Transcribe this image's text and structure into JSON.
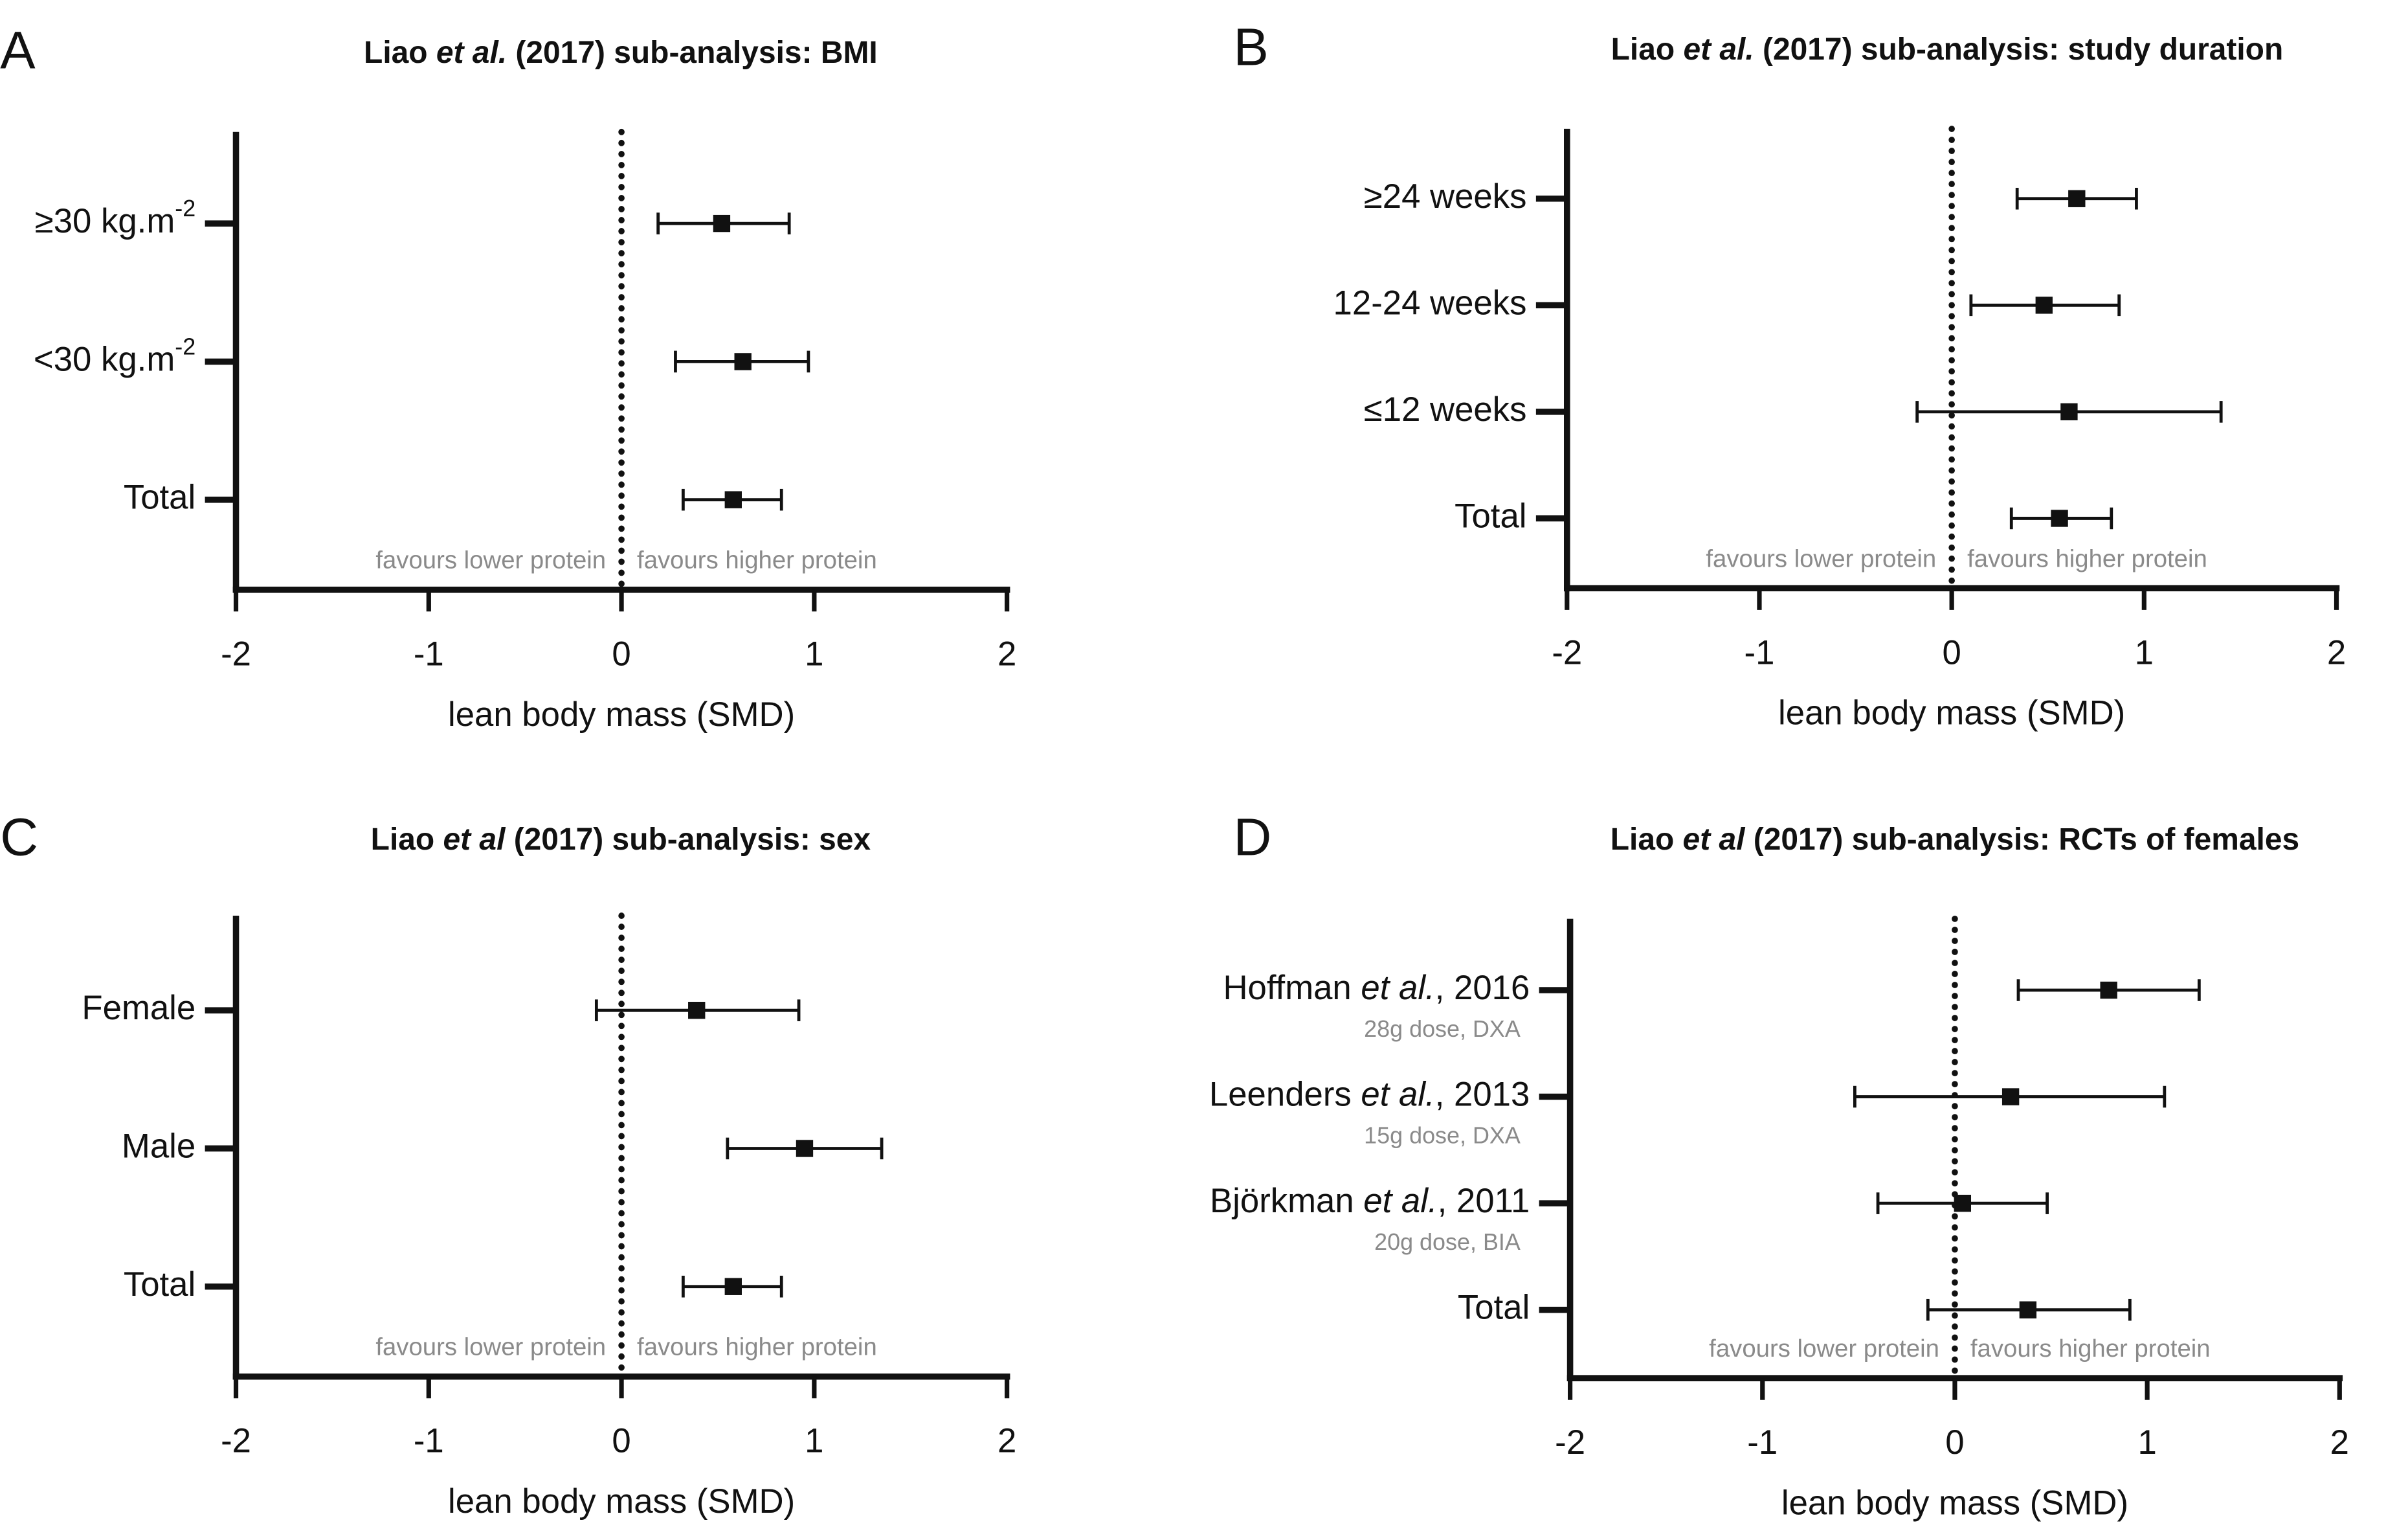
{
  "chart_data": [
    {
      "type": "forest",
      "panel": "A",
      "title": [
        "Liao ",
        "et al.",
        " (2017) sub-analysis: BMI"
      ],
      "categories": [
        [
          "≥30 kg.m",
          "-2"
        ],
        [
          "<30 kg.m",
          "-2"
        ],
        [
          "Total"
        ]
      ],
      "values": [
        0.52,
        0.63,
        0.58
      ],
      "lower": [
        0.19,
        0.28,
        0.32
      ],
      "upper": [
        0.87,
        0.97,
        0.83
      ],
      "xlim": [
        -2,
        2
      ],
      "xticks": [
        -2,
        -1,
        0,
        1,
        2
      ],
      "refline": 0,
      "xlabel": "lean body mass (SMD)",
      "annotations": [
        "favours lower protein",
        "favours higher protein"
      ]
    },
    {
      "type": "forest",
      "panel": "B",
      "title": [
        "Liao ",
        "et al.",
        " (2017) sub-analysis: study duration"
      ],
      "categories": [
        [
          "≥24 weeks"
        ],
        [
          "12-24 weeks"
        ],
        [
          "≤12 weeks"
        ],
        [
          "Total"
        ]
      ],
      "values": [
        0.65,
        0.48,
        0.61,
        0.56
      ],
      "lower": [
        0.34,
        0.1,
        -0.18,
        0.31
      ],
      "upper": [
        0.96,
        0.87,
        1.4,
        0.83
      ],
      "xlim": [
        -2,
        2
      ],
      "xticks": [
        -2,
        -1,
        0,
        1,
        2
      ],
      "refline": 0,
      "xlabel": "lean body mass (SMD)",
      "annotations": [
        "favours lower protein",
        "favours higher protein"
      ]
    },
    {
      "type": "forest",
      "panel": "C",
      "title": [
        "Liao ",
        "et al",
        " (2017) sub-analysis: sex"
      ],
      "categories": [
        [
          "Female"
        ],
        [
          "Male"
        ],
        [
          "Total"
        ]
      ],
      "values": [
        0.39,
        0.95,
        0.58
      ],
      "lower": [
        -0.13,
        0.55,
        0.32
      ],
      "upper": [
        0.92,
        1.35,
        0.83
      ],
      "xlim": [
        -2,
        2
      ],
      "xticks": [
        -2,
        -1,
        0,
        1,
        2
      ],
      "refline": 0,
      "xlabel": "lean body mass (SMD)",
      "annotations": [
        "favours lower protein",
        "favours higher protein"
      ]
    },
    {
      "type": "forest",
      "panel": "D",
      "title": [
        "Liao ",
        "et al",
        " (2017) sub-analysis: RCTs of females"
      ],
      "categories": [
        [
          "Hoffman ",
          "et al.",
          ", 2016"
        ],
        [
          "Leenders ",
          "et al.",
          ", 2013"
        ],
        [
          "Björkman ",
          "et al.",
          ", 2011"
        ],
        [
          "Total"
        ]
      ],
      "sublabels": [
        "28g dose, DXA",
        "15g dose, DXA",
        "20g dose, BIA",
        null
      ],
      "values": [
        0.8,
        0.29,
        0.04,
        0.38
      ],
      "lower": [
        0.33,
        -0.52,
        -0.4,
        -0.14
      ],
      "upper": [
        1.27,
        1.09,
        0.48,
        0.91
      ],
      "xlim": [
        -2,
        2
      ],
      "xticks": [
        -2,
        -1,
        0,
        1,
        2
      ],
      "refline": 0,
      "xlabel": "lean body mass (SMD)",
      "annotations": [
        "favours lower protein",
        "favours higher protein"
      ]
    }
  ]
}
